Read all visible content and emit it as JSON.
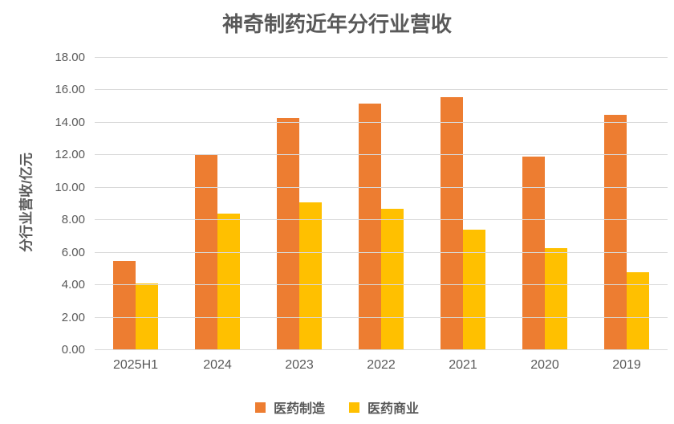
{
  "chart_data": {
    "type": "bar",
    "title": "神奇制药近年分行业营收",
    "xlabel": "",
    "ylabel": "分行业营收/亿元",
    "categories": [
      "2025H1",
      "2024",
      "2023",
      "2022",
      "2021",
      "2020",
      "2019"
    ],
    "series": [
      {
        "name": "医药制造",
        "color": "#ED7D31",
        "values": [
          5.5,
          12.0,
          14.3,
          15.2,
          15.6,
          11.9,
          14.5
        ]
      },
      {
        "name": "医药商业",
        "color": "#FFC000",
        "values": [
          4.1,
          8.4,
          9.1,
          8.7,
          7.4,
          6.3,
          4.8
        ]
      }
    ],
    "ylim": [
      0,
      18
    ],
    "yticks": [
      "0.00",
      "2.00",
      "4.00",
      "6.00",
      "8.00",
      "10.00",
      "12.00",
      "14.00",
      "16.00",
      "18.00"
    ],
    "grid": true,
    "legend_position": "bottom"
  },
  "colors": {
    "text": "#595959",
    "gridline": "#D9D9D9",
    "background": "#FFFFFF"
  }
}
